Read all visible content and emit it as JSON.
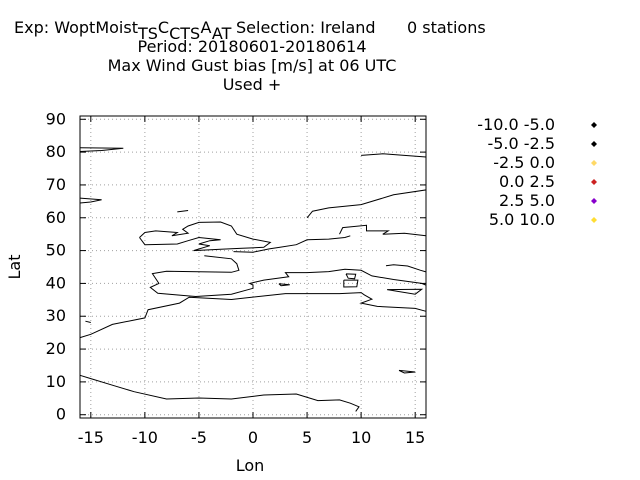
{
  "title": {
    "exp_prefix": "Exp: WoptMoist",
    "exp_sub": [
      "T",
      "S",
      "C",
      "T",
      "S",
      "A",
      "T"
    ],
    "exp_letters": [
      "",
      "",
      "C",
      "",
      "",
      "A",
      ""
    ],
    "selection": "Selection: Ireland",
    "stations": "0 stations",
    "period": "Period: 20180601-20180614",
    "variable": "Max Wind Gust bias [m/s] at  06 UTC",
    "used": "Used   +"
  },
  "axes": {
    "xlabel": "Lon",
    "ylabel": "Lat",
    "xlim": [
      -16,
      16
    ],
    "ylim": [
      -1,
      91
    ],
    "xticks": [
      -15,
      -10,
      -5,
      0,
      5,
      10,
      15
    ],
    "yticks": [
      0,
      10,
      20,
      30,
      40,
      50,
      60,
      70,
      80,
      90
    ],
    "grid": true
  },
  "legend": {
    "placement": "right",
    "entries": [
      {
        "label": "-10.0 -5.0",
        "color": "#000000"
      },
      {
        "label": "-5.0 -2.5",
        "color": "#000000"
      },
      {
        "label": "-2.5 0.0",
        "color": "#ffd966"
      },
      {
        "label": "0.0 2.5",
        "color": "#cc2222"
      },
      {
        "label": "2.5 5.0",
        "color": "#8800cc"
      },
      {
        "label": "5.0 10.0",
        "color": "#ffdd33"
      }
    ]
  },
  "coastlines": [
    {
      "name": "greenland",
      "pts": [
        [
          -16,
          81.3
        ],
        [
          -12,
          81.2
        ],
        [
          -14,
          80.5
        ],
        [
          -16,
          80.2
        ]
      ]
    },
    {
      "name": "greenland-east",
      "pts": [
        [
          -16,
          66
        ],
        [
          -14,
          65.5
        ],
        [
          -15,
          64.8
        ],
        [
          -16,
          64.5
        ]
      ]
    },
    {
      "name": "iceland",
      "pts": [
        [
          -6,
          62.2
        ],
        [
          -7,
          61.8
        ]
      ]
    },
    {
      "name": "uk",
      "pts": [
        [
          -10.5,
          54
        ],
        [
          -10,
          55.5
        ],
        [
          -9,
          56
        ],
        [
          -7,
          55.5
        ],
        [
          -7.5,
          54.5
        ],
        [
          -6,
          55.3
        ],
        [
          -6.5,
          56.5
        ],
        [
          -6,
          57.5
        ],
        [
          -5,
          58.6
        ],
        [
          -3,
          58.7
        ],
        [
          -2,
          57.5
        ],
        [
          -1.5,
          55
        ],
        [
          0,
          53.5
        ],
        [
          1.6,
          52.5
        ],
        [
          1,
          51
        ],
        [
          -1,
          50.7
        ],
        [
          -3,
          50.4
        ],
        [
          -5.5,
          50
        ],
        [
          -4,
          51.5
        ],
        [
          -5,
          52
        ],
        [
          -4,
          53
        ],
        [
          -3,
          53.3
        ],
        [
          -5,
          54
        ],
        [
          -6,
          53
        ],
        [
          -7,
          52
        ],
        [
          -10,
          51.8
        ],
        [
          -10.5,
          54
        ]
      ]
    },
    {
      "name": "norway-sweden",
      "pts": [
        [
          5,
          60
        ],
        [
          5.5,
          62
        ],
        [
          7,
          63
        ],
        [
          10,
          64
        ],
        [
          13,
          67
        ],
        [
          16,
          68.5
        ],
        [
          16,
          69.5
        ]
      ]
    },
    {
      "name": "denmark-baltic",
      "pts": [
        [
          8,
          55
        ],
        [
          8.3,
          57
        ],
        [
          10.5,
          57.7
        ],
        [
          10.5,
          56
        ],
        [
          12.5,
          56
        ],
        [
          12,
          55
        ],
        [
          14,
          55.3
        ],
        [
          16,
          54.5
        ]
      ]
    },
    {
      "name": "europe-north",
      "pts": [
        [
          -1.8,
          49.7
        ],
        [
          0,
          49.5
        ],
        [
          1.5,
          50.5
        ],
        [
          2.5,
          51
        ],
        [
          4,
          51.8
        ],
        [
          5,
          53.3
        ],
        [
          7,
          53.5
        ],
        [
          8.5,
          54
        ],
        [
          9,
          54.5
        ]
      ]
    },
    {
      "name": "europe-west",
      "pts": [
        [
          -4.5,
          48.4
        ],
        [
          -2,
          47.5
        ],
        [
          -1.5,
          46
        ],
        [
          -1.3,
          44
        ],
        [
          -2,
          43.4
        ],
        [
          -8,
          43.7
        ],
        [
          -9.3,
          43
        ],
        [
          -8.7,
          40
        ],
        [
          -9.5,
          38.8
        ],
        [
          -8.8,
          37
        ],
        [
          -6,
          36.2
        ],
        [
          -5.3,
          36
        ],
        [
          -2,
          36.7
        ],
        [
          0,
          38.5
        ],
        [
          0,
          39.5
        ],
        [
          -0.3,
          40
        ],
        [
          1,
          41
        ],
        [
          3.3,
          42
        ],
        [
          3,
          43.3
        ],
        [
          5,
          43.3
        ],
        [
          7,
          43.6
        ],
        [
          8.5,
          44.3
        ],
        [
          10,
          44
        ],
        [
          11,
          42.3
        ],
        [
          13,
          41.2
        ],
        [
          15.6,
          40
        ],
        [
          16,
          39.5
        ]
      ]
    },
    {
      "name": "adriatic",
      "pts": [
        [
          12.3,
          45.4
        ],
        [
          13,
          45.7
        ],
        [
          14.3,
          45.3
        ],
        [
          15.5,
          44
        ],
        [
          16,
          43.5
        ]
      ]
    },
    {
      "name": "corsica",
      "pts": [
        [
          8.6,
          42.9
        ],
        [
          9.5,
          42.8
        ],
        [
          9.4,
          41.4
        ],
        [
          8.8,
          41.6
        ],
        [
          8.6,
          42.9
        ]
      ]
    },
    {
      "name": "sardinia",
      "pts": [
        [
          8.4,
          41
        ],
        [
          9.7,
          41
        ],
        [
          9.6,
          39
        ],
        [
          8.4,
          38.9
        ],
        [
          8.4,
          41
        ]
      ]
    },
    {
      "name": "balearic",
      "pts": [
        [
          2.4,
          39.9
        ],
        [
          3.4,
          39.6
        ],
        [
          2.6,
          39.3
        ],
        [
          2.4,
          39.9
        ]
      ]
    },
    {
      "name": "sicily",
      "pts": [
        [
          12.4,
          38.1
        ],
        [
          15.6,
          38.2
        ],
        [
          15,
          36.7
        ],
        [
          12.4,
          38.1
        ]
      ]
    },
    {
      "name": "north-africa",
      "pts": [
        [
          -16,
          23.5
        ],
        [
          -15,
          24.5
        ],
        [
          -13,
          27.5
        ],
        [
          -10,
          29.5
        ],
        [
          -9.7,
          32
        ],
        [
          -6.8,
          34
        ],
        [
          -5.9,
          35.8
        ],
        [
          -2,
          35.1
        ],
        [
          3,
          36.9
        ],
        [
          8,
          36.9
        ],
        [
          10,
          37.2
        ],
        [
          10.3,
          36.5
        ],
        [
          11,
          35.2
        ],
        [
          10,
          34
        ],
        [
          11.5,
          33
        ],
        [
          15,
          32.4
        ],
        [
          16,
          31.5
        ]
      ]
    },
    {
      "name": "cape-verde",
      "pts": [
        [
          -15.5,
          28.5
        ],
        [
          -15,
          28.1
        ]
      ]
    },
    {
      "name": "west-africa",
      "pts": [
        [
          -16,
          12
        ],
        [
          -15,
          11
        ],
        [
          -13,
          9
        ],
        [
          -11,
          7
        ],
        [
          -8,
          4.8
        ],
        [
          -5,
          5.1
        ],
        [
          -2,
          4.8
        ],
        [
          1,
          6
        ],
        [
          4,
          6.3
        ],
        [
          6,
          4.3
        ],
        [
          8,
          4.5
        ],
        [
          9,
          3.5
        ],
        [
          9.8,
          2.4
        ],
        [
          9.5,
          1
        ]
      ]
    },
    {
      "name": "lake-chad",
      "pts": [
        [
          13.5,
          13.5
        ],
        [
          15,
          13
        ],
        [
          14,
          12.7
        ],
        [
          13.5,
          13.5
        ]
      ]
    },
    {
      "name": "svalbard",
      "pts": [
        [
          10,
          79
        ],
        [
          12,
          79.5
        ],
        [
          14,
          79
        ],
        [
          16,
          78.5
        ]
      ]
    }
  ]
}
